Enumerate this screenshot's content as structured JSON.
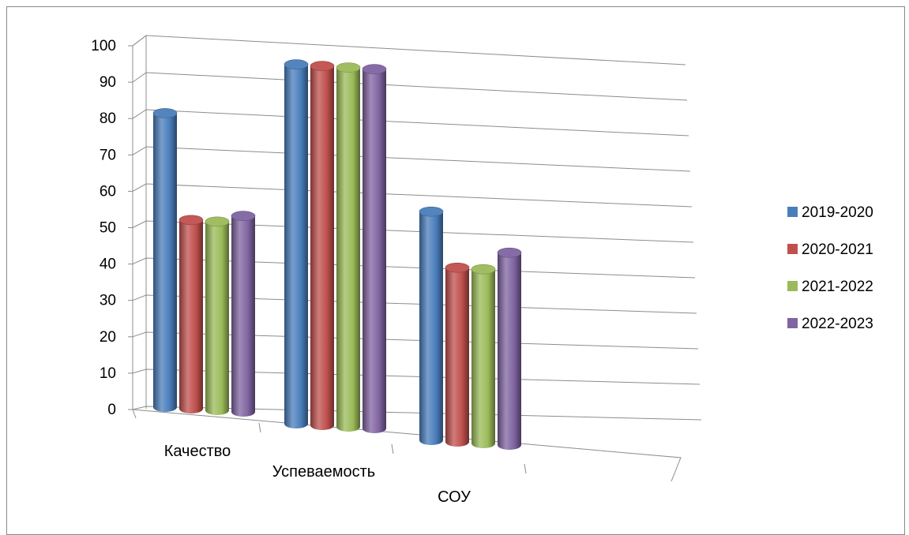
{
  "chart_data": {
    "type": "bar",
    "categories": [
      "Качество",
      "Успеваемость",
      "СОУ"
    ],
    "series": [
      {
        "name": "2019-2020",
        "values": [
          81,
          99,
          63
        ],
        "color": "#4a7ebb"
      },
      {
        "name": "2020-2021",
        "values": [
          52,
          99,
          48
        ],
        "color": "#c0504d"
      },
      {
        "name": "2021-2022",
        "values": [
          52,
          99,
          48
        ],
        "color": "#9bbb59"
      },
      {
        "name": "2022-2023",
        "values": [
          54,
          99,
          53
        ],
        "color": "#8064a2"
      }
    ],
    "yticks": [
      "0",
      "10",
      "20",
      "30",
      "40",
      "50",
      "60",
      "70",
      "80",
      "90",
      "100"
    ],
    "ylim": [
      0,
      100
    ],
    "grid": true,
    "legend": "right",
    "style": "3d-cylinder"
  }
}
